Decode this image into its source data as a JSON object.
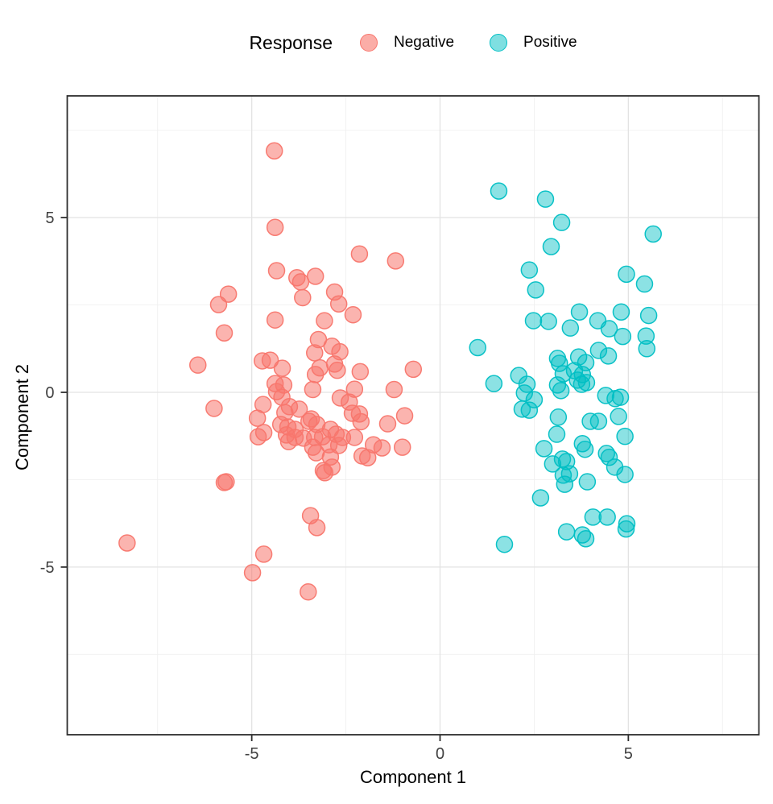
{
  "legend": {
    "title": "Response",
    "items": [
      {
        "label": "Negative",
        "color": "#F8766D"
      },
      {
        "label": "Positive",
        "color": "#00BFC4"
      }
    ]
  },
  "axes": {
    "x": {
      "title": "Component 1",
      "ticks": [
        "-5",
        "0",
        "5"
      ],
      "tick_values": [
        -5,
        0,
        5
      ],
      "minor_values": [
        -7.5,
        -2.5,
        2.5,
        7.5
      ]
    },
    "y": {
      "title": "Component 2",
      "ticks": [
        "-5",
        "0",
        "5"
      ],
      "tick_values": [
        -5,
        0,
        5
      ],
      "minor_values": [
        -7.5,
        -2.5,
        2.5,
        7.5
      ]
    }
  },
  "style": {
    "major_grid_color": "#e3e3e3",
    "minor_grid_color": "#f0f0f0",
    "panel_border_color": "#2e2e2e",
    "tick_color": "#2e2e2e",
    "tick_label_color": "#404040"
  },
  "chart_data": {
    "type": "scatter",
    "title": "",
    "xlabel": "Component 1",
    "ylabel": "Component 2",
    "xlim": [
      -9.9,
      8.5
    ],
    "ylim": [
      -9.8,
      8.5
    ],
    "grid": true,
    "legend_position": "top",
    "legend_title": "Response",
    "series": [
      {
        "name": "Negative",
        "color": "#F8766D",
        "points": [
          [
            -4.4,
            6.91
          ],
          [
            -4.38,
            4.72
          ],
          [
            -4.34,
            3.48
          ],
          [
            -5.62,
            2.81
          ],
          [
            -5.88,
            2.51
          ],
          [
            -4.38,
            2.07
          ],
          [
            -5.73,
            1.7
          ],
          [
            -6.43,
            0.78
          ],
          [
            -4.72,
            0.9
          ],
          [
            -4.51,
            0.92
          ],
          [
            -2.14,
            3.96
          ],
          [
            -1.18,
            3.76
          ],
          [
            -3.8,
            3.28
          ],
          [
            -3.7,
            3.16
          ],
          [
            -3.31,
            3.32
          ],
          [
            -3.65,
            2.71
          ],
          [
            -2.8,
            2.87
          ],
          [
            -2.69,
            2.53
          ],
          [
            -2.31,
            2.22
          ],
          [
            -3.07,
            2.05
          ],
          [
            -3.23,
            1.51
          ],
          [
            -2.87,
            1.32
          ],
          [
            -2.66,
            1.16
          ],
          [
            -3.33,
            1.13
          ],
          [
            -2.8,
            0.81
          ],
          [
            -3.19,
            0.7
          ],
          [
            -2.73,
            0.63
          ],
          [
            -2.12,
            0.59
          ],
          [
            -0.71,
            0.66
          ],
          [
            -4.19,
            0.69
          ],
          [
            -4.15,
            0.21
          ],
          [
            -4.38,
            0.25
          ],
          [
            -4.34,
            0.02
          ],
          [
            -6.0,
            -0.46
          ],
          [
            -4.7,
            -0.35
          ],
          [
            -4.85,
            -0.74
          ],
          [
            -4.68,
            -1.15
          ],
          [
            -4.83,
            -1.27
          ],
          [
            -4.2,
            -0.14
          ],
          [
            -4.12,
            -0.58
          ],
          [
            -4.23,
            -0.92
          ],
          [
            -4.04,
            -0.99
          ],
          [
            -4.02,
            -1.41
          ],
          [
            -5.73,
            -2.58
          ],
          [
            -8.31,
            -4.31
          ],
          [
            -4.68,
            -4.63
          ],
          [
            -4.98,
            -5.16
          ],
          [
            -3.38,
            0.08
          ],
          [
            -3.31,
            0.51
          ],
          [
            -2.27,
            0.09
          ],
          [
            -2.65,
            -0.16
          ],
          [
            -2.41,
            -0.28
          ],
          [
            -4.0,
            -0.41
          ],
          [
            -3.74,
            -0.48
          ],
          [
            -3.42,
            -0.76
          ],
          [
            -3.85,
            -1.06
          ],
          [
            -4.08,
            -1.22
          ],
          [
            -3.85,
            -1.29
          ],
          [
            -3.63,
            -1.31
          ],
          [
            -3.48,
            -0.83
          ],
          [
            -3.27,
            -0.92
          ],
          [
            -3.33,
            -1.29
          ],
          [
            -3.12,
            -1.27
          ],
          [
            -2.91,
            -1.06
          ],
          [
            -2.76,
            -1.2
          ],
          [
            -2.59,
            -1.29
          ],
          [
            -2.95,
            -1.5
          ],
          [
            -2.69,
            -1.52
          ],
          [
            -3.38,
            -1.57
          ],
          [
            -2.33,
            -0.6
          ],
          [
            -2.14,
            -0.62
          ],
          [
            -2.1,
            -0.84
          ],
          [
            -2.27,
            -1.29
          ],
          [
            -1.39,
            -0.9
          ],
          [
            -0.94,
            -0.67
          ],
          [
            -1.22,
            0.08
          ],
          [
            -1.54,
            -1.59
          ],
          [
            -1.0,
            -1.57
          ],
          [
            -2.07,
            -1.82
          ],
          [
            -1.92,
            -1.87
          ],
          [
            -1.77,
            -1.5
          ],
          [
            -2.91,
            -1.85
          ],
          [
            -3.29,
            -1.73
          ],
          [
            -3.1,
            -2.24
          ],
          [
            -2.87,
            -2.14
          ],
          [
            -3.06,
            -2.3
          ],
          [
            -3.44,
            -3.53
          ],
          [
            -3.27,
            -3.87
          ],
          [
            -3.5,
            -5.71
          ],
          [
            -5.68,
            -2.56
          ]
        ]
      },
      {
        "name": "Positive",
        "color": "#00BFC4",
        "points": [
          [
            1.56,
            5.76
          ],
          [
            2.8,
            5.53
          ],
          [
            3.23,
            4.86
          ],
          [
            5.66,
            4.53
          ],
          [
            2.95,
            4.17
          ],
          [
            2.37,
            3.5
          ],
          [
            4.95,
            3.38
          ],
          [
            5.43,
            3.1
          ],
          [
            2.54,
            2.93
          ],
          [
            3.7,
            2.3
          ],
          [
            4.81,
            2.3
          ],
          [
            5.54,
            2.2
          ],
          [
            2.48,
            2.05
          ],
          [
            2.88,
            2.03
          ],
          [
            4.19,
            2.05
          ],
          [
            3.46,
            1.84
          ],
          [
            4.49,
            1.82
          ],
          [
            4.85,
            1.6
          ],
          [
            5.47,
            1.61
          ],
          [
            5.49,
            1.25
          ],
          [
            1.0,
            1.28
          ],
          [
            4.21,
            1.2
          ],
          [
            4.47,
            1.04
          ],
          [
            3.68,
            1.01
          ],
          [
            3.87,
            0.85
          ],
          [
            3.12,
            0.97
          ],
          [
            3.17,
            0.83
          ],
          [
            3.57,
            0.62
          ],
          [
            3.27,
            0.53
          ],
          [
            3.78,
            0.51
          ],
          [
            3.65,
            0.35
          ],
          [
            3.89,
            0.28
          ],
          [
            3.12,
            0.21
          ],
          [
            3.21,
            0.05
          ],
          [
            3.76,
            0.23
          ],
          [
            2.09,
            0.48
          ],
          [
            2.31,
            0.23
          ],
          [
            2.24,
            -0.02
          ],
          [
            1.43,
            0.25
          ],
          [
            2.5,
            -0.21
          ],
          [
            2.18,
            -0.48
          ],
          [
            2.37,
            -0.51
          ],
          [
            4.4,
            -0.09
          ],
          [
            4.65,
            -0.18
          ],
          [
            4.79,
            -0.14
          ],
          [
            3.14,
            -0.71
          ],
          [
            3.99,
            -0.83
          ],
          [
            4.21,
            -0.83
          ],
          [
            4.74,
            -0.69
          ],
          [
            4.91,
            -1.26
          ],
          [
            3.1,
            -1.2
          ],
          [
            2.76,
            -1.61
          ],
          [
            3.78,
            -1.47
          ],
          [
            3.85,
            -1.63
          ],
          [
            4.42,
            -1.75
          ],
          [
            4.49,
            -1.86
          ],
          [
            3.25,
            -1.91
          ],
          [
            3.36,
            -1.98
          ],
          [
            2.99,
            -2.05
          ],
          [
            4.64,
            -2.14
          ],
          [
            4.91,
            -2.35
          ],
          [
            3.27,
            -2.37
          ],
          [
            3.44,
            -2.33
          ],
          [
            3.31,
            -2.63
          ],
          [
            3.91,
            -2.56
          ],
          [
            2.67,
            -3.02
          ],
          [
            4.06,
            -3.57
          ],
          [
            4.44,
            -3.57
          ],
          [
            4.96,
            -3.76
          ],
          [
            4.94,
            -3.91
          ],
          [
            3.36,
            -3.99
          ],
          [
            3.78,
            -4.08
          ],
          [
            3.87,
            -4.19
          ],
          [
            1.71,
            -4.35
          ]
        ]
      }
    ]
  }
}
